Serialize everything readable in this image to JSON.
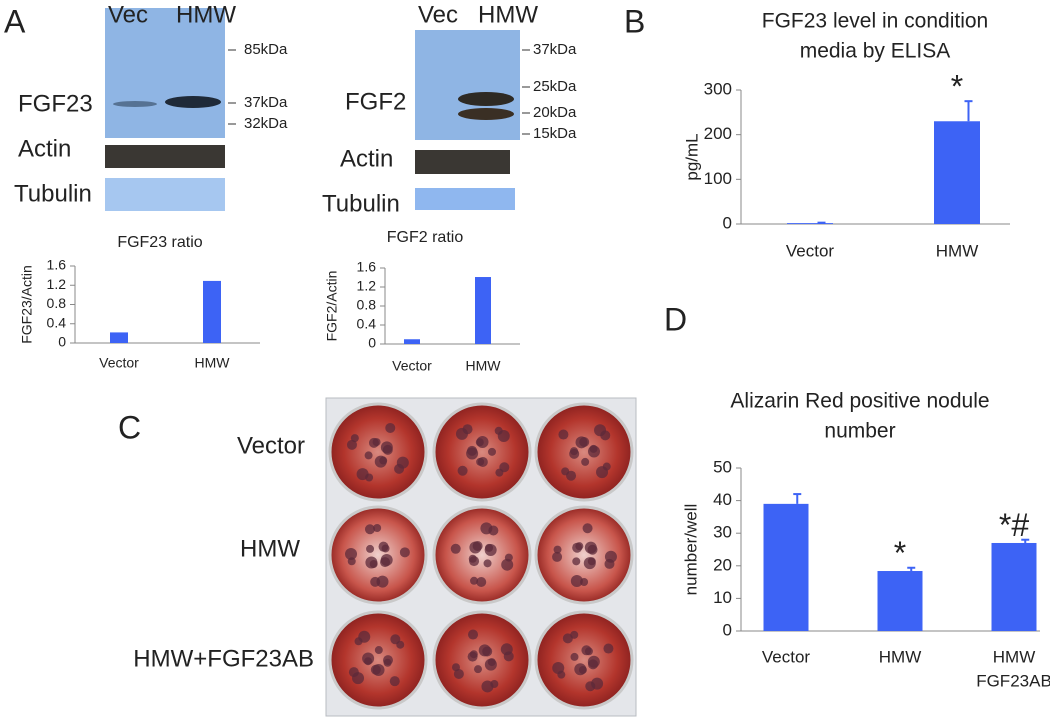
{
  "panels": {
    "A": {
      "letter": "A",
      "blot_fgf23": {
        "lanes": [
          "Vec",
          "HMW"
        ],
        "markers": [
          "85kDa",
          "37kDa",
          "32kDa"
        ],
        "target": "FGF23",
        "loading": [
          "Actin",
          "Tubulin"
        ]
      },
      "blot_fgf2": {
        "lanes": [
          "Vec",
          "HMW"
        ],
        "markers": [
          "37kDa",
          "25kDa",
          "20kDa",
          "15kDa"
        ],
        "target": "FGF2",
        "loading": [
          "Actin",
          "Tubulin"
        ]
      }
    },
    "B": {
      "letter": "B"
    },
    "C": {
      "letter": "C",
      "rows": [
        "Vector",
        "HMW",
        "HMW+FGF23AB"
      ]
    },
    "D": {
      "letter": "D"
    }
  },
  "chart_data": [
    {
      "type": "bar",
      "title": "FGF23 ratio",
      "ylabel": "FGF23/Actin",
      "categories": [
        "Vector",
        "HMW"
      ],
      "values": [
        0.22,
        1.29
      ],
      "color": "#3d63f5",
      "ylim": [
        0,
        1.6
      ],
      "yticks": [
        0,
        0.4,
        0.8,
        1.2,
        1.6
      ]
    },
    {
      "type": "bar",
      "title": "FGF2 ratio",
      "ylabel": "FGF2/Actin",
      "categories": [
        "Vector",
        "HMW"
      ],
      "values": [
        0.1,
        1.41
      ],
      "color": "#3d63f5",
      "ylim": [
        0,
        1.6
      ],
      "yticks": [
        0,
        0.4,
        0.8,
        1.2,
        1.6
      ]
    },
    {
      "type": "bar",
      "title": [
        "FGF23 level in condition",
        "media by ELISA"
      ],
      "ylabel": "pg/mL",
      "categories": [
        "Vector",
        "HMW"
      ],
      "values": [
        2,
        230
      ],
      "errors": [
        1,
        45
      ],
      "color": "#3d63f5",
      "ylim": [
        0,
        300
      ],
      "yticks": [
        0,
        100,
        200,
        300
      ],
      "annotations": [
        {
          "text": "*",
          "category": "HMW"
        }
      ]
    },
    {
      "type": "bar",
      "title": [
        "Alizarin Red positive nodule",
        "number"
      ],
      "ylabel": "number/well",
      "categories": [
        "Vector",
        "HMW",
        [
          "HMW",
          "FGF23AB"
        ]
      ],
      "values": [
        39,
        18.4,
        27
      ],
      "errors": [
        3,
        1,
        1
      ],
      "color": "#3d63f5",
      "ylim": [
        0,
        50
      ],
      "yticks": [
        0,
        10,
        20,
        30,
        40,
        50
      ],
      "annotations": [
        {
          "text": "*",
          "category": "HMW"
        },
        {
          "text": "*#",
          "category": [
            "HMW",
            "FGF23AB"
          ]
        }
      ]
    }
  ]
}
